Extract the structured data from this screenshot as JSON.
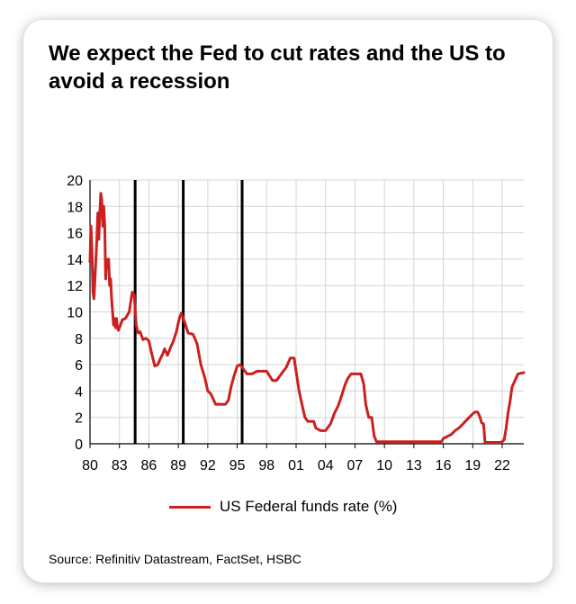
{
  "chart_data": {
    "type": "line",
    "title": "We expect the Fed to cut rates and the US to avoid a recession",
    "xlabel": "",
    "ylabel": "",
    "xlim": [
      1980,
      2024.2
    ],
    "ylim": [
      0,
      20
    ],
    "y_ticks": [
      "0",
      "2",
      "4",
      "6",
      "8",
      "10",
      "12",
      "14",
      "16",
      "18",
      "20"
    ],
    "x_ticks": [
      {
        "year": 1980,
        "label": "80"
      },
      {
        "year": 1983,
        "label": "83"
      },
      {
        "year": 1986,
        "label": "86"
      },
      {
        "year": 1989,
        "label": "89"
      },
      {
        "year": 1992,
        "label": "92"
      },
      {
        "year": 1995,
        "label": "95"
      },
      {
        "year": 1998,
        "label": "98"
      },
      {
        "year": 2001,
        "label": "01"
      },
      {
        "year": 2004,
        "label": "04"
      },
      {
        "year": 2007,
        "label": "07"
      },
      {
        "year": 2010,
        "label": "10"
      },
      {
        "year": 2013,
        "label": "13"
      },
      {
        "year": 2016,
        "label": "16"
      },
      {
        "year": 2019,
        "label": "19"
      },
      {
        "year": 2022,
        "label": "22"
      }
    ],
    "grid": true,
    "annotations": [
      {
        "type": "vertical-line",
        "x": 1984.6
      },
      {
        "type": "vertical-line",
        "x": 1989.5
      },
      {
        "type": "vertical-line",
        "x": 1995.5
      }
    ],
    "series": [
      {
        "name": "US Federal funds rate (%)",
        "color": "#cc1f1f",
        "x": [
          1980.0,
          1980.1,
          1980.2,
          1980.3,
          1980.4,
          1980.5,
          1980.7,
          1980.8,
          1980.9,
          1981.0,
          1981.1,
          1981.2,
          1981.3,
          1981.4,
          1981.5,
          1981.6,
          1981.7,
          1981.8,
          1981.9,
          1982.0,
          1982.1,
          1982.2,
          1982.3,
          1982.4,
          1982.5,
          1982.6,
          1982.7,
          1982.8,
          1982.9,
          1983.0,
          1983.3,
          1983.6,
          1984.0,
          1984.3,
          1984.5,
          1984.6,
          1984.7,
          1984.9,
          1985.1,
          1985.4,
          1985.7,
          1986.0,
          1986.3,
          1986.6,
          1986.9,
          1987.2,
          1987.4,
          1987.6,
          1987.9,
          1988.2,
          1988.5,
          1988.8,
          1989.1,
          1989.3,
          1989.5,
          1989.7,
          1990.0,
          1990.5,
          1990.9,
          1991.3,
          1991.7,
          1992.0,
          1992.3,
          1992.8,
          1993.3,
          1993.8,
          1994.1,
          1994.4,
          1994.7,
          1995.0,
          1995.3,
          1995.6,
          1996.0,
          1996.5,
          1997.0,
          1997.4,
          1998.0,
          1998.6,
          1999.0,
          1999.3,
          1999.6,
          2000.0,
          2000.4,
          2000.8,
          2001.0,
          2001.3,
          2001.6,
          2001.9,
          2002.2,
          2002.8,
          2003.0,
          2003.5,
          2004.0,
          2004.5,
          2004.9,
          2005.3,
          2005.7,
          2006.0,
          2006.3,
          2006.6,
          2007.0,
          2007.6,
          2007.9,
          2008.1,
          2008.4,
          2008.7,
          2008.95,
          2009.2,
          2012.0,
          2015.8,
          2016.0,
          2016.8,
          2017.2,
          2017.6,
          2018.0,
          2018.5,
          2018.9,
          2019.2,
          2019.5,
          2019.7,
          2019.9,
          2020.1,
          2020.25,
          2021.0,
          2021.9,
          2022.2,
          2022.4,
          2022.6,
          2022.8,
          2023.0,
          2023.3,
          2023.6,
          2024.2
        ],
        "values": [
          13.8,
          16.5,
          14.5,
          11.5,
          11.0,
          12.5,
          15.5,
          17.5,
          15.5,
          17.5,
          19.0,
          18.5,
          16.5,
          18.0,
          16.5,
          12.5,
          14.0,
          13.5,
          14.0,
          12.0,
          12.5,
          11.0,
          10.0,
          9.0,
          9.5,
          8.8,
          9.5,
          8.8,
          8.6,
          8.8,
          9.4,
          9.5,
          10.0,
          11.5,
          11.3,
          10.2,
          9.0,
          8.4,
          8.5,
          7.9,
          8.0,
          7.8,
          6.8,
          5.9,
          6.0,
          6.5,
          6.8,
          7.2,
          6.7,
          7.3,
          7.8,
          8.5,
          9.5,
          9.9,
          9.5,
          9.1,
          8.4,
          8.3,
          7.6,
          6.0,
          5.0,
          4.0,
          3.8,
          3.0,
          3.0,
          3.0,
          3.3,
          4.4,
          5.2,
          5.9,
          6.0,
          5.7,
          5.3,
          5.3,
          5.5,
          5.5,
          5.5,
          4.8,
          4.8,
          5.1,
          5.4,
          5.8,
          6.5,
          6.5,
          5.5,
          4.0,
          3.0,
          2.0,
          1.7,
          1.7,
          1.2,
          1.0,
          1.0,
          1.5,
          2.3,
          2.9,
          3.8,
          4.5,
          5.0,
          5.3,
          5.3,
          5.3,
          4.5,
          3.0,
          2.0,
          2.0,
          0.6,
          0.15,
          0.15,
          0.15,
          0.4,
          0.7,
          1.0,
          1.2,
          1.5,
          1.9,
          2.2,
          2.4,
          2.4,
          2.1,
          1.6,
          1.5,
          0.1,
          0.1,
          0.1,
          0.3,
          1.2,
          2.4,
          3.2,
          4.3,
          4.8,
          5.3,
          5.4
        ]
      }
    ],
    "legend": {
      "label": "US Federal funds rate (%)",
      "position": "bottom-center"
    },
    "source": "Source: Refinitiv Datastream, FactSet, HSBC"
  }
}
